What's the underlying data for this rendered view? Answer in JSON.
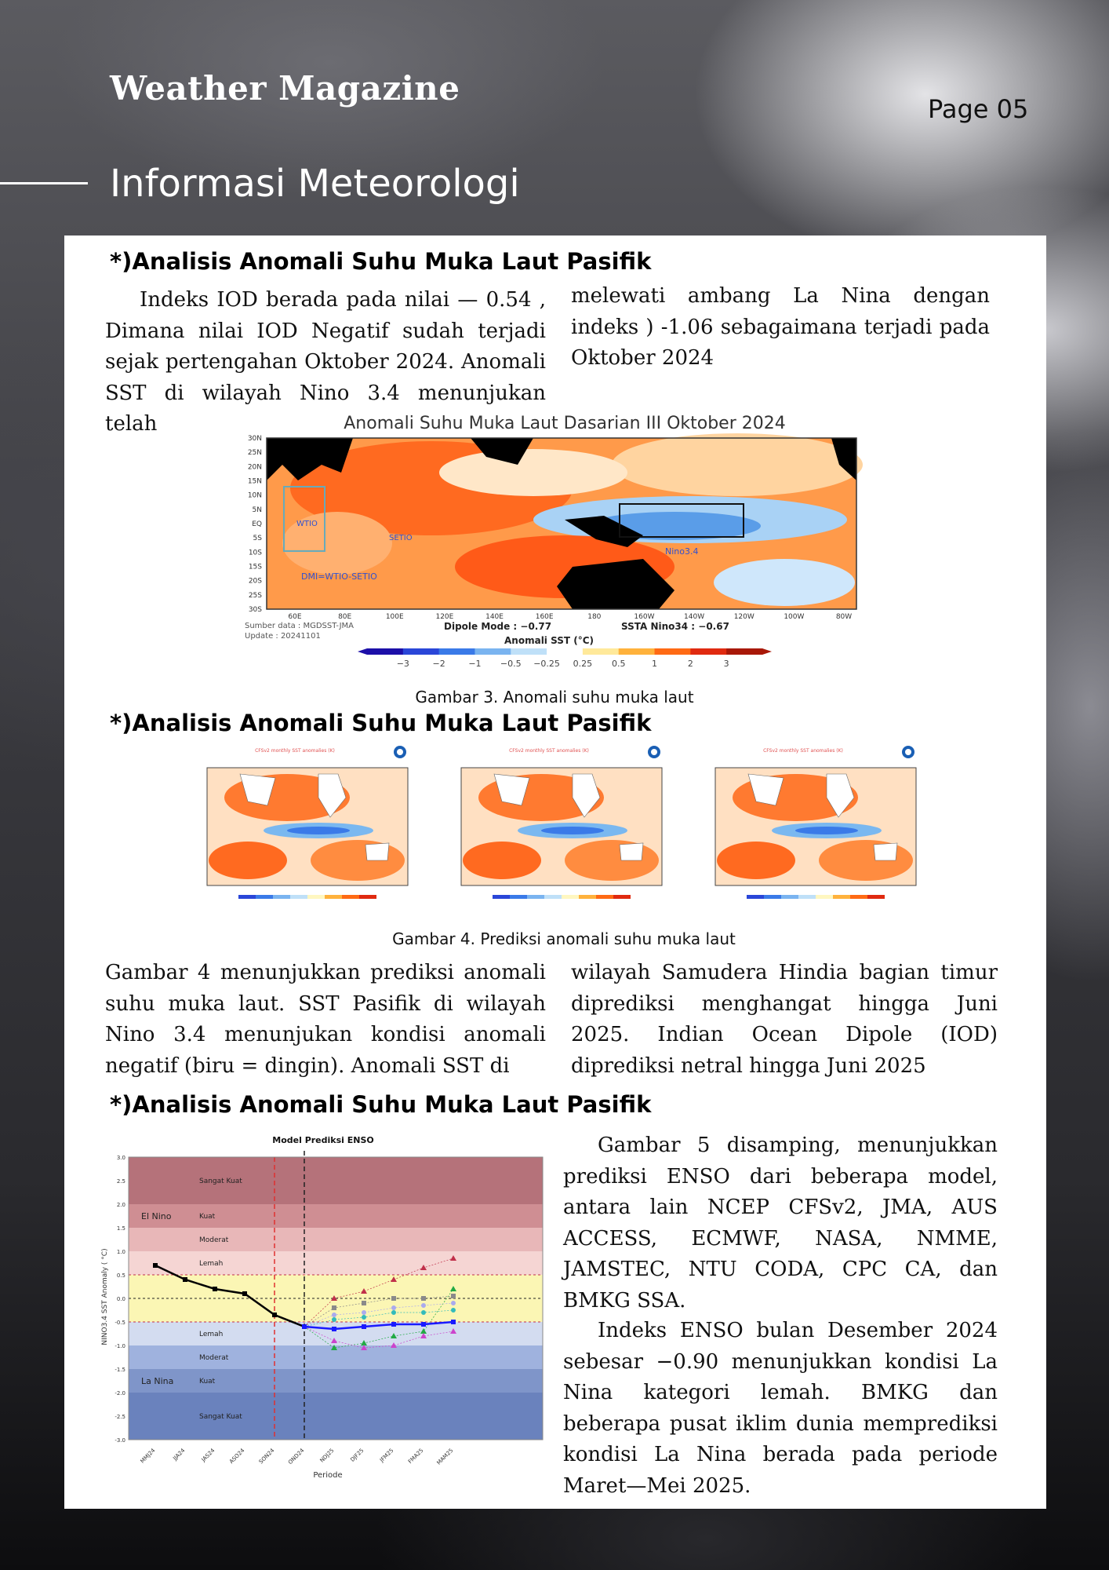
{
  "header": {
    "magazine_title": "Weather Magazine",
    "page_label": "Page 05",
    "section_title": "Informasi Meteorologi"
  },
  "section1": {
    "heading": "*)Analisis Anomali Suhu Muka Laut Pasifik",
    "col_left": "Indeks IOD berada pada nilai — 0.54 , Dimana nilai IOD Negatif sudah terjadi sejak pertengahan Oktober 2024. Anomali SST di wilayah Nino 3.4 menunjukan telah",
    "col_right": "melewati ambang La Nina dengan indeks ) -1.06 sebagaimana terjadi pada Oktober 2024",
    "figure": {
      "title": "Anomali Suhu Muka Laut Dasarian III Oktober 2024",
      "lat_ticks": [
        "30N",
        "25N",
        "20N",
        "15N",
        "10N",
        "5N",
        "EQ",
        "5S",
        "10S",
        "15S",
        "20S",
        "25S",
        "30S"
      ],
      "lon_ticks": [
        "60E",
        "80E",
        "100E",
        "120E",
        "140E",
        "160E",
        "180",
        "160W",
        "140W",
        "120W",
        "100W",
        "80W"
      ],
      "box_labels": [
        "WTIO",
        "SETIO",
        "Nino3.4"
      ],
      "dmi_label": "DMI=WTIO-SETIO",
      "source": "Sumber data : MGDSST-JMA",
      "update": "Update : 20241101",
      "dipole": "Dipole Mode : −0.77",
      "ssta": "SSTA Nino34 : −0.67",
      "colorbar_title": "Anomali SST (°C)",
      "colorbar_ticks": [
        "−3",
        "−2",
        "−1",
        "−0.5",
        "−0.25",
        "0.25",
        "0.5",
        "1",
        "2",
        "3"
      ],
      "colorbar_colors": [
        "#1c0fa8",
        "#2a46d8",
        "#3a7ae8",
        "#7ab4f0",
        "#bfe0f8",
        "#ffffff",
        "#ffe99a",
        "#ffb23c",
        "#ff6a14",
        "#e02a10",
        "#a81808"
      ]
    },
    "caption": "Gambar 3. Anomali suhu muka laut"
  },
  "section2": {
    "heading": "*)Analisis Anomali Suhu Muka Laut Pasifik",
    "maps": [
      {
        "header": "CFSv2 monthly SST anomalies (K)"
      },
      {
        "header": "CFSv2 monthly SST anomalies (K)"
      },
      {
        "header": "CFSv2 monthly SST anomalies (K)"
      }
    ],
    "caption": "Gambar 4. Prediksi anomali suhu muka laut",
    "col_left": "Gambar 4 menunjukkan prediksi anomali suhu muka laut. SST Pasifik di wilayah Nino 3.4 menunjukan kondisi anomali negatif (biru = dingin). Anomali SST di",
    "col_right": "wilayah Samudera Hindia bagian timur diprediksi menghangat hingga Juni 2025. Indian Ocean Dipole (IOD) diprediksi netral hingga Juni 2025"
  },
  "section3": {
    "heading": "*)Analisis Anomali Suhu Muka Laut Pasifik",
    "para1": "Gambar 5 disamping, menunjukkan prediksi ENSO dari beberapa model, antara lain NCEP CFSv2, JMA, AUS ACCESS, ECMWF, NASA, NMME, JAMSTEC, NTU CODA, CPC CA, dan BMKG SSA.",
    "para2": "Indeks ENSO bulan Desember 2024 sebesar −0.90 menunjukkan kondisi La Nina kategori lemah. BMKG dan beberapa pusat iklim dunia memprediksi kondisi La Nina berada pada periode Maret—Mei 2025."
  },
  "chart_data": {
    "type": "line",
    "title": "Model Prediksi ENSO",
    "xlabel": "Periode",
    "ylabel": "NINO3.4 SST Anomaly ( °C)",
    "ylim": [
      -3.0,
      3.0
    ],
    "yticks": [
      3.0,
      2.5,
      2.0,
      1.5,
      1.0,
      0.5,
      0.0,
      -0.5,
      -1.0,
      -1.5,
      -2.0,
      -2.5,
      -3.0
    ],
    "categories": [
      "MMJ24",
      "JJA24",
      "JAS24",
      "ASO24",
      "SON24",
      "OND24",
      "NDJ25",
      "DJF25",
      "JFM25",
      "FMA25",
      "MAM25"
    ],
    "bands": [
      {
        "label": "Sangat Kuat",
        "from": 2.0,
        "to": 3.0,
        "color": "#b5727a"
      },
      {
        "label": "Kuat",
        "from": 1.5,
        "to": 2.0,
        "color": "#cf8e93"
      },
      {
        "label": "Moderat",
        "from": 1.0,
        "to": 1.5,
        "color": "#e8b7b8"
      },
      {
        "label": "Lemah",
        "from": 0.5,
        "to": 1.0,
        "color": "#f5d5d3"
      },
      {
        "label": "",
        "from": -0.5,
        "to": 0.5,
        "color": "#fbf6b4"
      },
      {
        "label": "Lemah",
        "from": -1.0,
        "to": -0.5,
        "color": "#d3dcf0"
      },
      {
        "label": "Moderat",
        "from": -1.5,
        "to": -1.0,
        "color": "#9fb2de"
      },
      {
        "label": "Kuat",
        "from": -2.0,
        "to": -1.5,
        "color": "#7f95c9"
      },
      {
        "label": "Sangat Kuat",
        "from": -3.0,
        "to": -2.0,
        "color": "#6a82bd"
      }
    ],
    "regime_labels": [
      {
        "label": "El Nino",
        "y": 1.75
      },
      {
        "label": "La Nina",
        "y": -1.75
      }
    ],
    "series": [
      {
        "name": "",
        "color": "#000000",
        "values": [
          0.7,
          0.4,
          0.2,
          0.1,
          -0.35,
          -0.6,
          null,
          null,
          null,
          null,
          null
        ]
      },
      {
        "name": "",
        "color": "#1a1aff",
        "values": [
          null,
          null,
          null,
          null,
          null,
          -0.6,
          -0.65,
          -0.6,
          -0.55,
          -0.55,
          -0.5
        ]
      }
    ],
    "model_points": [
      {
        "color": "#c0304a",
        "marker": "triangle",
        "values": [
          0.0,
          0.15,
          0.4,
          0.65,
          0.85
        ]
      },
      {
        "color": "#22aa44",
        "marker": "triangle",
        "values": [
          -1.05,
          -0.95,
          -0.8,
          -0.7,
          0.2
        ]
      },
      {
        "color": "#8a8a8a",
        "marker": "square",
        "values": [
          -0.2,
          -0.1,
          0.0,
          0.0,
          0.05
        ]
      },
      {
        "color": "#cc44cc",
        "marker": "triangle",
        "values": [
          -0.9,
          -1.05,
          -1.0,
          -0.8,
          -0.7
        ]
      },
      {
        "color": "#33bbbb",
        "marker": "circle",
        "values": [
          -0.45,
          -0.4,
          -0.3,
          -0.3,
          -0.25
        ]
      },
      {
        "color": "#aaaaee",
        "marker": "circle",
        "values": [
          -0.35,
          -0.3,
          -0.2,
          -0.15,
          -0.1
        ]
      }
    ]
  }
}
